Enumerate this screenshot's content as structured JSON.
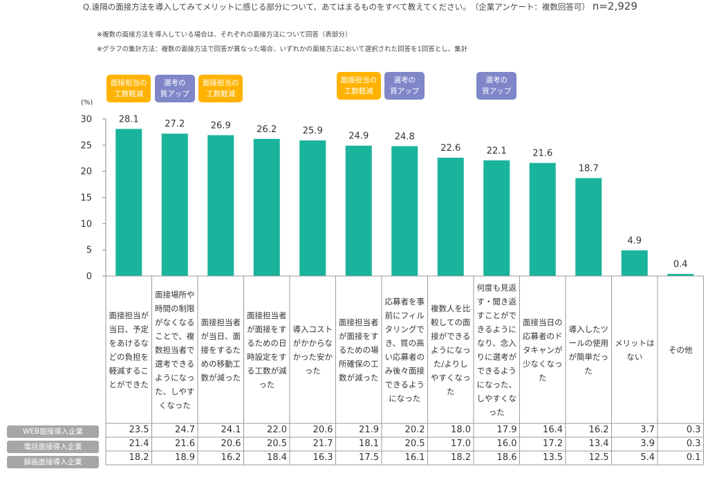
{
  "header": {
    "question": "Q.遠隔の面接方法を導入してみてメリットに感じる部分について、あてはまるものをすべて教えてください。　（企業アンケート：複数回答可）",
    "n_label": "n=2,929",
    "note1": "※複数の面接方法を導入している場合は、それぞれの面接方法について回答（表部分）",
    "note2": "※グラフの集計方法：複数の面接方法で回答が異なった場合、いずれかの面接方法において選択された回答を1回答とし、集計"
  },
  "badge_texts": {
    "cost": "面接担当の\n工数軽減",
    "quality": "選考の\n質アップ"
  },
  "colors": {
    "bar": "#1ab39b",
    "badge_cost": "#ffb300",
    "badge_quality": "#7f87c9",
    "row_label": "#a6a6a6"
  },
  "chart_data": {
    "type": "bar",
    "ylabel": "(%)",
    "ylim": [
      0,
      30
    ],
    "yticks": [
      0,
      5,
      10,
      15,
      20,
      25,
      30
    ],
    "grid": false,
    "categories": [
      "面接担当が当日、予定をあけるなどの負担を軽減することができた",
      "面接場所や時間の制限がなくなることで、複数担当者で選考できるようになった、しやすくなった",
      "面接担当者が当日、面接をするための移動工数が減った",
      "面接担当者が面接をするための日時設定をする工数が減った",
      "導入コストがかからなかった安かった",
      "面接担当者が面接をするための場所確保の工数が減った",
      "応募者を事前にフィルタリングでき、質の高い応募者のみ後々面接できるようになった",
      "複数人を比較しての面接ができるようになった/よりしやすくなった",
      "何度も見返す・聞き返すことができるようになり、念入りに選考ができるようになった、しやすくなった",
      "面接当日の応募者のドタキャンが少なくなった",
      "導入したツールの使用が簡単だった",
      "メリットはない",
      "その他"
    ],
    "values": [
      28.1,
      27.2,
      26.9,
      26.2,
      25.9,
      24.9,
      24.8,
      22.6,
      22.1,
      21.6,
      18.7,
      4.9,
      0.4
    ],
    "badges": [
      {
        "category_index": 0,
        "type": "cost"
      },
      {
        "category_index": 1,
        "type": "quality"
      },
      {
        "category_index": 2,
        "type": "cost"
      },
      {
        "category_index": 5,
        "type": "cost"
      },
      {
        "category_index": 6,
        "type": "quality"
      },
      {
        "category_index": 8,
        "type": "quality"
      }
    ],
    "table": [
      {
        "label": "WEB面接導入企業",
        "values": [
          "23.5",
          "24.7",
          "24.1",
          "22.0",
          "20.6",
          "21.9",
          "20.2",
          "18.0",
          "17.9",
          "16.4",
          "16.2",
          "3.7",
          "0.3"
        ]
      },
      {
        "label": "電話面接導入企業",
        "values": [
          "21.4",
          "21.6",
          "20.6",
          "20.5",
          "21.7",
          "18.1",
          "20.5",
          "17.0",
          "16.0",
          "17.2",
          "13.4",
          "3.9",
          "0.3"
        ]
      },
      {
        "label": "録画面接導入企業",
        "values": [
          "18.2",
          "18.9",
          "16.2",
          "18.4",
          "16.3",
          "17.5",
          "16.1",
          "18.2",
          "18.6",
          "13.5",
          "12.5",
          "5.4",
          "0.1"
        ]
      }
    ]
  }
}
